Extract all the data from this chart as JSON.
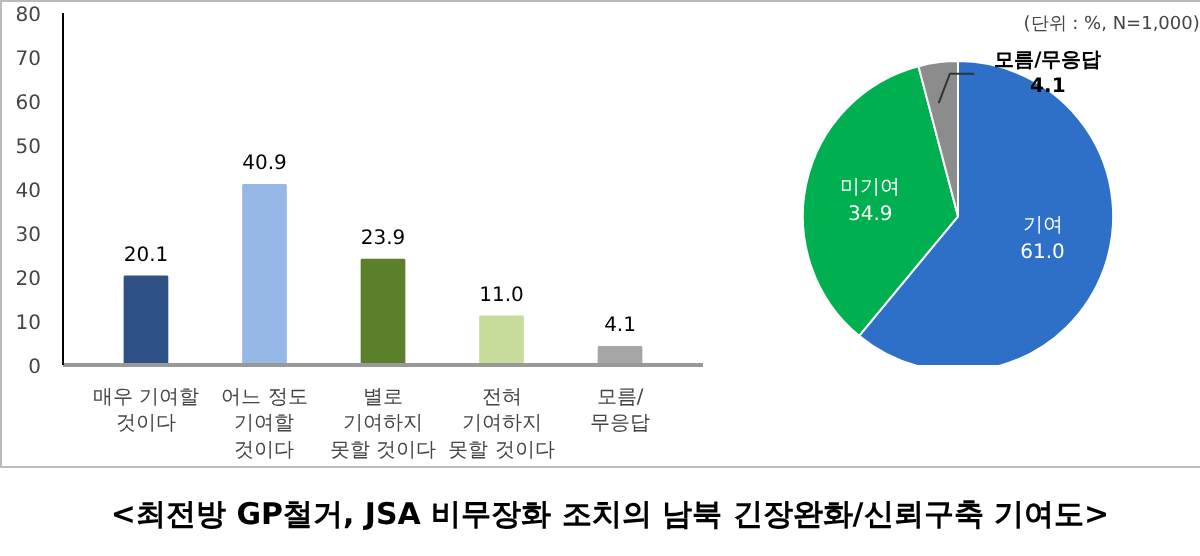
{
  "chart_data": [
    {
      "type": "bar",
      "title": "<최전방 GP철거, JSA 비무장화 조치의 남북 긴장완화/신뢰구축 기여도>",
      "categories": [
        "매우 기여할\n것이다",
        "어느 정도\n기여할\n것이다",
        "별로\n기여하지\n못할 것이다",
        "전혀\n기여하지\n못할 것이다",
        "모름/\n무응답"
      ],
      "values": [
        20.1,
        40.9,
        23.9,
        11.0,
        4.1
      ],
      "colors": [
        "#2f5286",
        "#95b8e6",
        "#5b7f2b",
        "#c6dc9a",
        "#a6a6a6"
      ],
      "ylim": [
        0,
        80
      ],
      "yticks": [
        0,
        10,
        20,
        30,
        40,
        50,
        60,
        70,
        80
      ],
      "grid": false,
      "value_labels": [
        "20.1",
        "40.9",
        "23.9",
        "11.0",
        "4.1"
      ]
    },
    {
      "type": "pie",
      "annotations": [
        "(단위 : %, N=1,000)"
      ],
      "categories": [
        "기여",
        "미기여",
        "모름/무응답"
      ],
      "values": [
        61.0,
        34.9,
        4.1
      ],
      "colors": [
        "#2e70c8",
        "#00b050",
        "#8c8c8c"
      ],
      "value_labels": [
        "61.0",
        "34.9",
        "4.1"
      ]
    }
  ]
}
